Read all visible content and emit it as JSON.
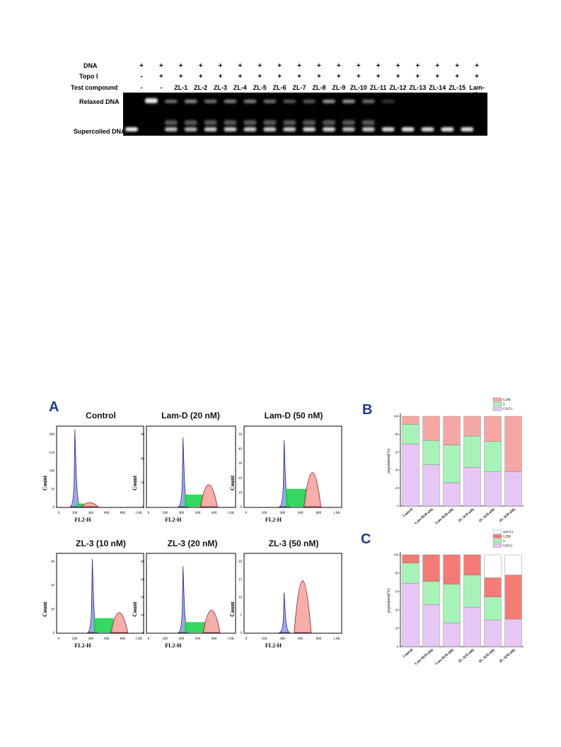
{
  "gel": {
    "rows": [
      {
        "label": "DNA",
        "values": [
          "+",
          "+",
          "+",
          "+",
          "+",
          "+",
          "+",
          "+",
          "+",
          "+",
          "+",
          "+",
          "+",
          "+",
          "+",
          "+",
          "+",
          "+"
        ]
      },
      {
        "label": "Topo Ⅰ",
        "values": [
          "-",
          "+",
          "+",
          "+",
          "+",
          "+",
          "+",
          "+",
          "+",
          "+",
          "+",
          "+",
          "+",
          "+",
          "+",
          "+",
          "+",
          "+"
        ]
      },
      {
        "label": "Test compound",
        "values": [
          "-",
          "-",
          "ZL-1",
          "ZL-2",
          "ZL-3",
          "ZL-4",
          "ZL-5",
          "ZL-6",
          "ZL-7",
          "ZL-8",
          "ZL-9",
          "ZL-10",
          "ZL-11",
          "ZL-12",
          "ZL-13",
          "ZL-14",
          "ZL-15",
          "Lam-D"
        ]
      }
    ],
    "relaxed_label": "Relaxed  DNA",
    "supercoiled_label": "Supercoiled  DNA"
  },
  "panels": {
    "a": "A",
    "b": "B",
    "c": "C"
  },
  "histograms": [
    {
      "title": "Control",
      "ylabel": "Count",
      "xlabel": "FL2-H",
      "yticks": [
        "0",
        "50",
        "100",
        "150",
        "200"
      ],
      "xticks": [
        "0",
        "200",
        "400",
        "600",
        "800",
        "1.0K"
      ]
    },
    {
      "title": "Lam-D (20 nM)",
      "ylabel": "Count",
      "xlabel": "FL2-H",
      "yticks": [
        "0",
        "20",
        "40",
        "60"
      ],
      "xticks": [
        "0",
        "200",
        "400",
        "600",
        "800",
        "1.0K"
      ]
    },
    {
      "title": "Lam-D (50 nM)",
      "ylabel": "Count",
      "xlabel": "FL2-H",
      "yticks": [
        "0",
        "10",
        "20",
        "30",
        "40",
        "50"
      ],
      "xticks": [
        "0",
        "200",
        "400",
        "600",
        "800",
        "1.0K"
      ]
    },
    {
      "title": "ZL-3 (10 nM)",
      "ylabel": "Count",
      "xlabel": "FL2-H",
      "yticks": [
        "0",
        "20",
        "40",
        "60"
      ],
      "xticks": [
        "0",
        "200",
        "400",
        "600",
        "800",
        "1.0K"
      ]
    },
    {
      "title": "ZL-3 (20 nM)",
      "ylabel": "Count",
      "xlabel": "FL2-H",
      "yticks": [
        "0",
        "10",
        "20",
        "30",
        "40"
      ],
      "xticks": [
        "0",
        "200",
        "400",
        "600",
        "800",
        "1.0K"
      ]
    },
    {
      "title": "ZL-3 (50 nM)",
      "ylabel": "Count",
      "xlabel": "FL2-H",
      "yticks": [
        "0",
        "5",
        "10",
        "15",
        "20"
      ],
      "xticks": [
        "0",
        "200",
        "400",
        "600",
        "800",
        "1.0K"
      ]
    }
  ],
  "chart_data": [
    {
      "type": "bar",
      "stacked": true,
      "ylabel": "population(%)",
      "yticks": [
        "0",
        "20",
        "40",
        "60",
        "80",
        "100"
      ],
      "ylim": [
        0,
        100
      ],
      "categories": [
        "Control",
        "Lam-D(20 nM)",
        "Lam-D(50 nM)",
        "ZL-3(10 nM)",
        "ZL-3(20 nM)",
        "ZL-3(50 nM)"
      ],
      "legend_position": "top-right",
      "series": [
        {
          "name": "G0/G1",
          "color": "#e6c6f5",
          "values": [
            69,
            46,
            26,
            43,
            38,
            38
          ]
        },
        {
          "name": "S",
          "color": "#a6f2b8",
          "values": [
            22,
            27,
            42,
            35,
            34,
            0
          ]
        },
        {
          "name": "G2M",
          "color": "#f7a7a3",
          "values": [
            9,
            27,
            32,
            22,
            28,
            62
          ]
        }
      ]
    },
    {
      "type": "bar",
      "stacked": true,
      "ylabel": "population(%)",
      "yticks": [
        "0",
        "20",
        "40",
        "60",
        "80",
        "100"
      ],
      "ylim": [
        0,
        100
      ],
      "categories": [
        "Control",
        "Lam-D(20 nM)",
        "Lam-D(50 nM)",
        "ZL-3(10 nM)",
        "ZL-3(20 nM)",
        "ZL-3(50 nM)"
      ],
      "legend_position": "top-right",
      "series": [
        {
          "name": "G0/G1",
          "color": "#e6c6f5",
          "values": [
            69,
            46,
            26,
            43,
            29,
            30
          ]
        },
        {
          "name": "S",
          "color": "#a6f2b8",
          "values": [
            22,
            25,
            42,
            35,
            25,
            0
          ]
        },
        {
          "name": "G2M",
          "color": "#f47b75",
          "values": [
            9,
            29,
            32,
            22,
            21,
            48
          ]
        },
        {
          "name": "sub-G1",
          "color": "#ffffff",
          "values": [
            0,
            0,
            0,
            0,
            25,
            22
          ]
        }
      ]
    }
  ]
}
